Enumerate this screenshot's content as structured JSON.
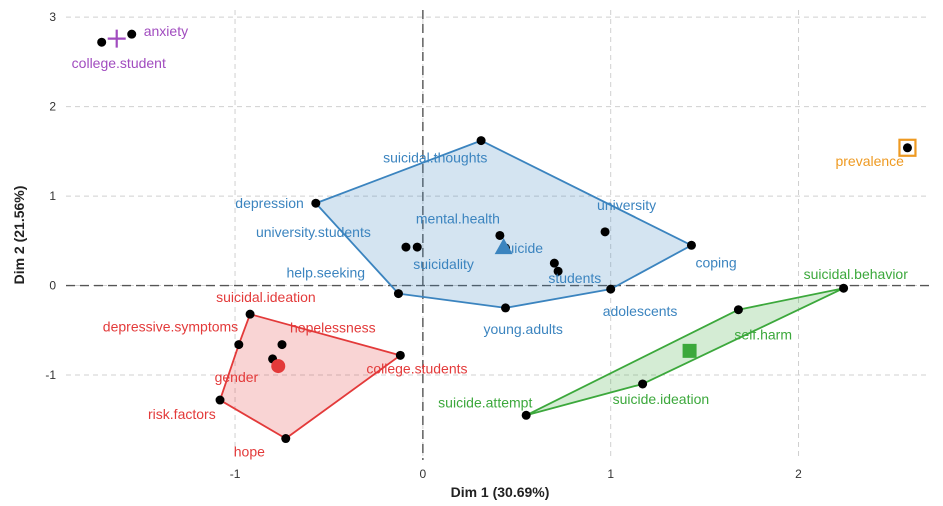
{
  "chart_data": {
    "type": "scatter",
    "xlabel": "Dim 1 (30.69%)",
    "ylabel": "Dim 2 (21.56%)",
    "xlim": [
      -1.9,
      2.7
    ],
    "ylim": [
      -1.95,
      3.08
    ],
    "xticks": [
      -1,
      0,
      1,
      2
    ],
    "yticks": [
      -1,
      0,
      1,
      2,
      3
    ],
    "grid": true,
    "colors": {
      "purple": "#a14cbf",
      "blue": "#3b84bf",
      "red": "#e33a3a",
      "green": "#3ca83c",
      "orange": "#ee9a22"
    },
    "clusters": [
      {
        "color": "purple",
        "hull": false,
        "centroid": {
          "x": -1.63,
          "y": 2.76,
          "shape": "cross"
        },
        "points": [
          {
            "label": "anxiety",
            "x": -1.55,
            "y": 2.81
          },
          {
            "label": "college.student",
            "x": -1.71,
            "y": 2.72
          }
        ]
      },
      {
        "color": "blue",
        "hull": true,
        "centroid": {
          "x": 0.43,
          "y": 0.43,
          "shape": "triangle"
        },
        "points": [
          {
            "label": "suicidal.thoughts",
            "x": 0.31,
            "y": 1.62
          },
          {
            "label": "depression",
            "x": -0.57,
            "y": 0.92
          },
          {
            "label": "mental.health",
            "x": 0.41,
            "y": 0.56
          },
          {
            "label": "university",
            "x": 0.97,
            "y": 0.6
          },
          {
            "label": "university.students",
            "x": -0.09,
            "y": 0.43
          },
          {
            "label": "suicide",
            "x": 0.44,
            "y": 0.42
          },
          {
            "label": "suicidality",
            "x": -0.03,
            "y": 0.43
          },
          {
            "label": "coping",
            "x": 1.43,
            "y": 0.45
          },
          {
            "label": "help.seeking",
            "x": -0.13,
            "y": -0.09
          },
          {
            "label": "students",
            "x": 0.7,
            "y": 0.25
          },
          {
            "label": "students",
            "x": 0.72,
            "y": 0.16
          },
          {
            "label": "adolescents",
            "x": 1.0,
            "y": -0.04
          },
          {
            "label": "young.adults",
            "x": 0.44,
            "y": -0.25
          }
        ]
      },
      {
        "color": "red",
        "hull": true,
        "centroid": {
          "x": -0.77,
          "y": -0.9,
          "shape": "circle"
        },
        "points": [
          {
            "label": "suicidal.ideation",
            "x": -0.92,
            "y": -0.32
          },
          {
            "label": "depressive.symptoms",
            "x": -0.98,
            "y": -0.66
          },
          {
            "label": "hopelessness",
            "x": -0.75,
            "y": -0.66
          },
          {
            "label": "gender",
            "x": -0.8,
            "y": -0.82
          },
          {
            "label": "college.students",
            "x": -0.12,
            "y": -0.78
          },
          {
            "label": "risk.factors",
            "x": -1.08,
            "y": -1.28
          },
          {
            "label": "hope",
            "x": -0.73,
            "y": -1.71
          }
        ]
      },
      {
        "color": "green",
        "hull": true,
        "centroid": {
          "x": 1.42,
          "y": -0.73,
          "shape": "square"
        },
        "points": [
          {
            "label": "suicidal.behavior",
            "x": 2.24,
            "y": -0.03
          },
          {
            "label": "self.harm",
            "x": 1.68,
            "y": -0.27
          },
          {
            "label": "suicide.ideation",
            "x": 1.17,
            "y": -1.1
          },
          {
            "label": "suicide.attempt",
            "x": 0.55,
            "y": -1.45
          }
        ]
      },
      {
        "color": "orange",
        "hull": false,
        "centroid": {
          "x": 2.58,
          "y": 1.54,
          "shape": "square"
        },
        "points": [
          {
            "label": "prevalence",
            "x": 2.58,
            "y": 1.54
          }
        ]
      }
    ]
  }
}
